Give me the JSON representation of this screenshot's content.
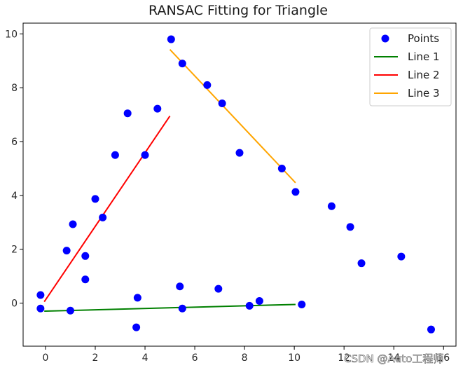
{
  "chart_data": {
    "type": "scatter",
    "title": "RANSAC Fitting for Triangle",
    "xlabel": "",
    "ylabel": "",
    "xlim": [
      -0.9,
      16.5
    ],
    "ylim": [
      -1.6,
      10.4
    ],
    "x_ticks": [
      0,
      2,
      4,
      6,
      8,
      10,
      12,
      14,
      16
    ],
    "x_tick_labels": [
      "0",
      "2",
      "4",
      "6",
      "8",
      "10",
      "12",
      "14",
      "16"
    ],
    "y_ticks": [
      0,
      2,
      4,
      6,
      8,
      10
    ],
    "y_tick_labels": [
      "0",
      "2",
      "4",
      "6",
      "8",
      "10"
    ],
    "legend_position": "top-right",
    "points": {
      "name": "Points",
      "color": "#0000ff",
      "x": [
        -0.2,
        -0.2,
        1.0,
        0.85,
        1.1,
        1.6,
        1.6,
        2.0,
        2.3,
        2.8,
        3.3,
        3.7,
        3.65,
        4.0,
        4.5,
        5.05,
        5.4,
        5.5,
        5.5,
        6.5,
        6.95,
        7.1,
        7.8,
        8.2,
        8.6,
        9.5,
        10.05,
        10.3,
        11.5,
        12.25,
        12.7,
        14.3,
        15.5
      ],
      "y": [
        0.3,
        -0.2,
        -0.28,
        1.95,
        2.93,
        1.75,
        0.88,
        3.87,
        3.18,
        5.5,
        7.05,
        0.2,
        -0.9,
        5.5,
        7.22,
        9.8,
        0.62,
        -0.2,
        8.9,
        8.1,
        0.53,
        7.42,
        5.58,
        -0.1,
        0.08,
        5.0,
        4.13,
        -0.05,
        3.6,
        2.83,
        1.48,
        1.73,
        -0.98
      ]
    },
    "series": [
      {
        "name": "Line 1",
        "color": "#008000",
        "x": [
          -0.05,
          10.05
        ],
        "y": [
          -0.3,
          -0.05
        ]
      },
      {
        "name": "Line 2",
        "color": "#ff0000",
        "x": [
          -0.05,
          5.0
        ],
        "y": [
          0.05,
          6.95
        ]
      },
      {
        "name": "Line 3",
        "color": "#ffa500",
        "x": [
          5.0,
          10.05
        ],
        "y": [
          9.42,
          4.47
        ]
      }
    ]
  },
  "watermark": "CSDN @Auto工程师"
}
